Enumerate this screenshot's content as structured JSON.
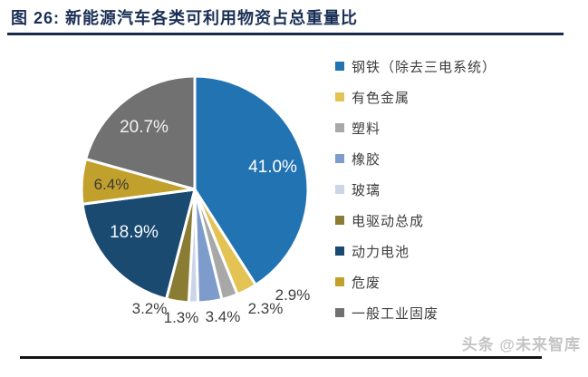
{
  "header": {
    "title": "图 26:  新能源汽车各类可利用物资占总重量比"
  },
  "watermark": {
    "label": "头条 @未来智库"
  },
  "chart_data": {
    "type": "pie",
    "title": "图 26: 新能源汽车各类可利用物资占总重量比",
    "categories": [
      "钢铁（除去三电系统）",
      "有色金属",
      "塑料",
      "橡胶",
      "玻璃",
      "电驱动总成",
      "动力电池",
      "危废",
      "一般工业固废"
    ],
    "values": [
      41.0,
      2.9,
      2.3,
      3.4,
      1.3,
      3.2,
      18.9,
      6.4,
      20.7
    ],
    "labels": [
      "41.0%",
      "2.9%",
      "2.3%",
      "3.4%",
      "1.3%",
      "3.2%",
      "18.9%",
      "6.4%",
      "20.7%"
    ],
    "colors": [
      "#2273B2",
      "#E2C354",
      "#A8A8A8",
      "#7D9CCC",
      "#CBD5E8",
      "#8A7C33",
      "#1A4A70",
      "#C2A02C",
      "#717171"
    ],
    "legend_position": "right",
    "start_angle_deg": 0,
    "direction": "clockwise",
    "slice_gap_color": "#FFFFFF"
  }
}
